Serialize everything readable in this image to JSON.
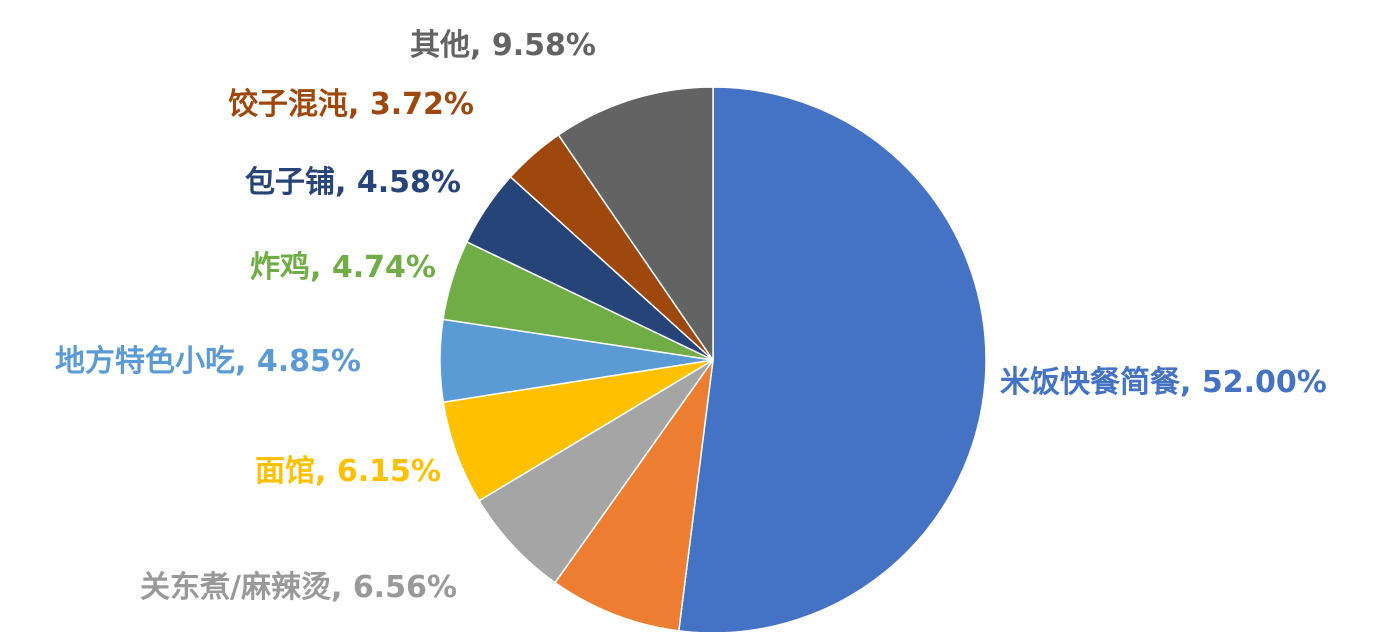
{
  "chart_data": {
    "type": "pie",
    "categories": [
      "米饭快餐简餐",
      null,
      "关东煮/麻辣烫",
      "面馆",
      "地方特色小吃",
      "炸鸡",
      "包子铺",
      "饺子混沌",
      "其他"
    ],
    "values": [
      52.0,
      7.82,
      6.56,
      6.15,
      4.85,
      4.74,
      4.58,
      3.72,
      9.58
    ],
    "value_labels": [
      "52.00%",
      null,
      "6.56%",
      "6.15%",
      "4.85%",
      "4.74%",
      "4.58%",
      "3.72%",
      "9.58%"
    ],
    "label_separator": ", ",
    "colors": [
      "#4472c4",
      "#ed7d31",
      "#a5a5a5",
      "#ffc000",
      "#5b9bd5",
      "#70ad47",
      "#264478",
      "#9e480e",
      "#636363"
    ]
  }
}
